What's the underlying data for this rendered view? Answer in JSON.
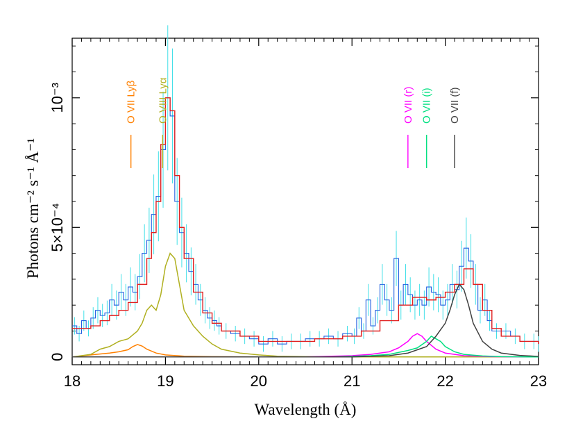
{
  "chart_data": {
    "type": "line",
    "title": "",
    "xlabel": "Wavelength (Å)",
    "ylabel": "Photons cm⁻² s⁻¹ Å⁻¹",
    "xlim": [
      18,
      23
    ],
    "ylim": [
      -3e-05,
      0.00123
    ],
    "x_ticks": [
      {
        "value": 18,
        "label": "18"
      },
      {
        "value": 19,
        "label": "19"
      },
      {
        "value": 20,
        "label": "20"
      },
      {
        "value": 21,
        "label": "21"
      },
      {
        "value": 22,
        "label": "22"
      },
      {
        "value": 23,
        "label": "23"
      }
    ],
    "y_ticks": [
      {
        "value": 0,
        "label": "0"
      },
      {
        "value": 0.0005,
        "label": "5×10⁻⁴"
      },
      {
        "value": 0.001,
        "label": "10⁻³"
      }
    ],
    "grid": false,
    "line_labels": [
      {
        "text": "O VII Lyβ",
        "x": 18.63,
        "color": "#ff8000"
      },
      {
        "text": "O VIII Lyα",
        "x": 18.97,
        "color": "#b0b020"
      },
      {
        "text": "O VII (r)",
        "x": 21.6,
        "color": "#ff00ff"
      },
      {
        "text": "O VII (i)",
        "x": 21.8,
        "color": "#00e080"
      },
      {
        "text": "O VII (f)",
        "x": 22.1,
        "color": "#404040"
      }
    ],
    "series": [
      {
        "color": "#1f5fe0",
        "style": "histogram-data",
        "x": [
          18.0,
          18.05,
          18.1,
          18.15,
          18.2,
          18.25,
          18.3,
          18.35,
          18.4,
          18.45,
          18.5,
          18.55,
          18.6,
          18.65,
          18.7,
          18.75,
          18.8,
          18.85,
          18.9,
          18.95,
          19.0,
          19.05,
          19.1,
          19.15,
          19.2,
          19.25,
          19.3,
          19.35,
          19.4,
          19.45,
          19.5,
          19.55,
          19.6,
          19.7,
          19.8,
          19.9,
          20.0,
          20.1,
          20.2,
          20.3,
          20.4,
          20.5,
          20.6,
          20.7,
          20.8,
          20.9,
          21.0,
          21.05,
          21.1,
          21.15,
          21.2,
          21.25,
          21.3,
          21.35,
          21.4,
          21.45,
          21.5,
          21.55,
          21.6,
          21.65,
          21.7,
          21.75,
          21.8,
          21.85,
          21.9,
          21.95,
          22.0,
          22.05,
          22.1,
          22.15,
          22.2,
          22.25,
          22.3,
          22.35,
          22.4,
          22.45,
          22.5,
          22.6,
          22.7,
          22.8,
          22.9,
          23.0
        ],
        "y": [
          0.00012,
          9e-05,
          0.00014,
          0.00011,
          0.00015,
          0.00018,
          0.00016,
          0.00017,
          0.00022,
          0.0002,
          0.00025,
          0.00022,
          0.00027,
          0.00025,
          0.00031,
          0.0004,
          0.00045,
          0.00055,
          0.00062,
          0.0008,
          0.001,
          0.00093,
          0.0006,
          0.00048,
          0.0004,
          0.00033,
          0.00028,
          0.00022,
          0.00018,
          0.00015,
          0.00014,
          0.00012,
          0.0001,
          9e-05,
          8e-05,
          7e-05,
          5e-05,
          7e-05,
          5e-05,
          6e-05,
          6e-05,
          7e-05,
          7e-05,
          8e-05,
          7e-05,
          9e-05,
          8e-05,
          0.00015,
          0.0001,
          0.00022,
          0.00012,
          0.00018,
          0.00028,
          0.00022,
          0.00018,
          0.00038,
          0.0002,
          0.00028,
          0.00024,
          0.0002,
          0.00022,
          0.0002,
          0.00027,
          0.00025,
          0.00024,
          0.0002,
          0.00022,
          0.00028,
          0.00026,
          0.00035,
          0.00042,
          0.00037,
          0.00028,
          0.00018,
          0.00022,
          0.00014,
          0.0001,
          0.0001,
          8e-05,
          6e-05,
          6e-05,
          5e-05
        ]
      },
      {
        "color": "#e02020",
        "style": "step-model",
        "x": [
          18.0,
          18.1,
          18.2,
          18.3,
          18.4,
          18.5,
          18.6,
          18.7,
          18.8,
          18.85,
          18.9,
          18.95,
          19.0,
          19.05,
          19.1,
          19.15,
          19.2,
          19.3,
          19.4,
          19.5,
          19.6,
          19.8,
          20.0,
          20.3,
          20.6,
          20.9,
          21.1,
          21.3,
          21.5,
          21.65,
          21.8,
          21.9,
          22.0,
          22.1,
          22.2,
          22.3,
          22.4,
          22.5,
          22.6,
          22.8,
          23.0
        ],
        "y": [
          0.00011,
          0.00011,
          0.00012,
          0.00014,
          0.00016,
          0.00018,
          0.00021,
          0.00028,
          0.00038,
          0.00048,
          0.0006,
          0.00082,
          0.001,
          0.00095,
          0.0007,
          0.0005,
          0.00038,
          0.00025,
          0.00017,
          0.00013,
          0.0001,
          8e-05,
          6e-05,
          6e-05,
          7e-05,
          8e-05,
          0.0001,
          0.00014,
          0.0002,
          0.00023,
          0.00022,
          0.00023,
          0.00025,
          0.00028,
          0.00034,
          0.00028,
          0.00018,
          0.00011,
          8e-05,
          6e-05,
          5e-05
        ]
      },
      {
        "color": "#ff8000",
        "style": "component",
        "x": [
          18.0,
          18.2,
          18.4,
          18.5,
          18.6,
          18.65,
          18.7,
          18.75,
          18.8,
          18.9,
          19.0,
          19.2,
          19.5,
          20.0,
          21.0,
          23.0
        ],
        "y": [
          0.0,
          8e-06,
          1.5e-05,
          2e-05,
          2.8e-05,
          4e-05,
          4.8e-05,
          4.2e-05,
          3e-05,
          1.5e-05,
          8e-06,
          3e-06,
          1e-06,
          0.0,
          0.0,
          0.0
        ]
      },
      {
        "color": "#b0b020",
        "style": "component",
        "x": [
          18.0,
          18.2,
          18.3,
          18.4,
          18.5,
          18.6,
          18.7,
          18.75,
          18.8,
          18.85,
          18.9,
          18.95,
          19.0,
          19.05,
          19.1,
          19.15,
          19.2,
          19.3,
          19.4,
          19.5,
          19.6,
          19.8,
          20.0,
          20.2,
          20.5,
          21.0,
          23.0
        ],
        "y": [
          0.0,
          1e-05,
          3e-05,
          4e-05,
          6e-05,
          7e-05,
          0.0001,
          0.00013,
          0.00018,
          0.0002,
          0.00018,
          0.00024,
          0.00035,
          0.0004,
          0.00038,
          0.00028,
          0.00018,
          0.00012,
          8e-05,
          5e-05,
          3e-05,
          1.5e-05,
          8e-06,
          3e-06,
          1e-06,
          0.0,
          0.0
        ]
      },
      {
        "color": "#ff00ff",
        "style": "component",
        "x": [
          18.0,
          20.5,
          21.0,
          21.2,
          21.4,
          21.5,
          21.6,
          21.65,
          21.7,
          21.75,
          21.8,
          21.9,
          22.0,
          22.2,
          22.5,
          23.0
        ],
        "y": [
          0.0,
          0.0,
          5e-06,
          1e-05,
          2e-05,
          3.5e-05,
          6e-05,
          8e-05,
          9e-05,
          8e-05,
          6e-05,
          3e-05,
          1.5e-05,
          5e-06,
          1e-06,
          0.0
        ]
      },
      {
        "color": "#00e080",
        "style": "component",
        "x": [
          18.0,
          20.8,
          21.2,
          21.4,
          21.6,
          21.7,
          21.8,
          21.85,
          21.9,
          21.95,
          22.0,
          22.1,
          22.2,
          22.4,
          22.6,
          23.0
        ],
        "y": [
          0.0,
          0.0,
          5e-06,
          1e-05,
          2.5e-05,
          3.5e-05,
          6e-05,
          8e-05,
          7e-05,
          6e-05,
          4e-05,
          2e-05,
          1e-05,
          4e-06,
          1e-06,
          0.0
        ]
      },
      {
        "color": "#404040",
        "style": "component",
        "x": [
          18.0,
          21.0,
          21.4,
          21.6,
          21.8,
          21.9,
          22.0,
          22.05,
          22.1,
          22.15,
          22.2,
          22.25,
          22.3,
          22.4,
          22.5,
          22.6,
          22.8,
          23.0
        ],
        "y": [
          0.0,
          0.0,
          5e-06,
          1.5e-05,
          4e-05,
          8e-05,
          0.00013,
          0.00018,
          0.00024,
          0.00028,
          0.00026,
          0.0002,
          0.00013,
          6e-05,
          3e-05,
          1.5e-05,
          6e-06,
          2e-06
        ]
      }
    ]
  }
}
